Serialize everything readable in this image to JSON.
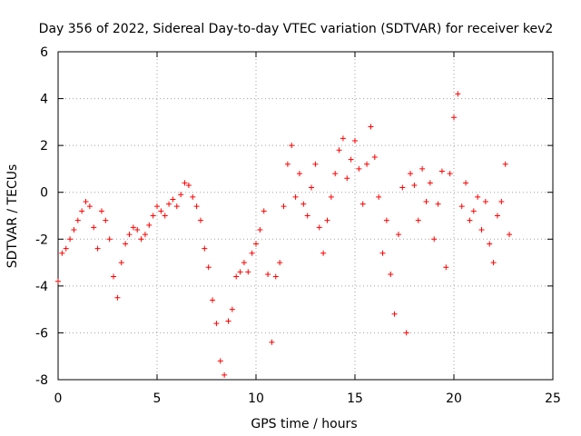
{
  "chart_data": {
    "type": "scatter",
    "title": "Day 356 of 2022, Sidereal Day-to-day VTEC variation (SDTVAR) for receiver kev2",
    "xlabel": "GPS time / hours",
    "ylabel": "SDTVAR / TECUs",
    "xlim": [
      0,
      25
    ],
    "ylim": [
      -8,
      6
    ],
    "xticks": [
      0,
      5,
      10,
      15,
      20,
      25
    ],
    "yticks": [
      -8,
      -6,
      -4,
      -2,
      0,
      2,
      4,
      6
    ],
    "grid": true,
    "marker": "plus",
    "color": "#ff0000",
    "series": [
      {
        "name": "SDTVAR",
        "x": [
          0.0,
          0.2,
          0.4,
          0.6,
          0.8,
          1.0,
          1.2,
          1.4,
          1.6,
          1.8,
          2.0,
          2.2,
          2.4,
          2.6,
          2.8,
          3.0,
          3.2,
          3.4,
          3.6,
          3.8,
          4.0,
          4.2,
          4.4,
          4.6,
          4.8,
          5.0,
          5.2,
          5.4,
          5.6,
          5.8,
          6.0,
          6.2,
          6.4,
          6.6,
          6.8,
          7.0,
          7.2,
          7.4,
          7.6,
          7.8,
          8.0,
          8.2,
          8.4,
          8.6,
          8.8,
          9.0,
          9.2,
          9.4,
          9.6,
          9.8,
          10.0,
          10.2,
          10.4,
          10.6,
          10.8,
          11.0,
          11.2,
          11.4,
          11.6,
          11.8,
          12.0,
          12.2,
          12.4,
          12.6,
          12.8,
          13.0,
          13.2,
          13.4,
          13.6,
          13.8,
          14.0,
          14.2,
          14.4,
          14.6,
          14.8,
          15.0,
          15.2,
          15.4,
          15.6,
          15.8,
          16.0,
          16.2,
          16.4,
          16.6,
          16.8,
          17.0,
          17.2,
          17.4,
          17.6,
          17.8,
          18.0,
          18.2,
          18.4,
          18.6,
          18.8,
          19.0,
          19.2,
          19.4,
          19.6,
          19.8,
          20.0,
          20.2,
          20.4,
          20.6,
          20.8,
          21.0,
          21.2,
          21.4,
          21.6,
          21.8,
          22.0,
          22.2,
          22.4,
          22.6,
          22.8
        ],
        "y": [
          -3.8,
          -2.6,
          -2.4,
          -2.0,
          -1.6,
          -1.2,
          -0.8,
          -0.4,
          -0.6,
          -1.5,
          -2.4,
          -0.8,
          -1.2,
          -2.0,
          -3.6,
          -4.5,
          -3.0,
          -2.2,
          -1.8,
          -1.5,
          -1.6,
          -2.0,
          -1.8,
          -1.4,
          -1.0,
          -0.6,
          -0.8,
          -1.0,
          -0.5,
          -0.3,
          -0.6,
          -0.1,
          0.4,
          0.3,
          -0.2,
          -0.6,
          -1.2,
          -2.4,
          -3.2,
          -4.6,
          -5.6,
          -7.2,
          -7.8,
          -5.5,
          -5.0,
          -3.6,
          -3.4,
          -3.0,
          -3.4,
          -2.6,
          -2.2,
          -1.6,
          -0.8,
          -3.5,
          -6.4,
          -3.6,
          -3.0,
          -0.6,
          1.2,
          2.0,
          -0.2,
          0.8,
          -0.5,
          -1.0,
          0.2,
          1.2,
          -1.5,
          -2.6,
          -1.2,
          -0.2,
          0.8,
          1.8,
          2.3,
          0.6,
          1.4,
          2.2,
          1.0,
          -0.5,
          1.2,
          2.8,
          1.5,
          -0.2,
          -2.6,
          -1.2,
          -3.5,
          -5.2,
          -1.8,
          0.2,
          -6.0,
          0.8,
          0.3,
          -1.2,
          1.0,
          -0.4,
          0.4,
          -2.0,
          -0.5,
          0.9,
          -3.2,
          0.8,
          3.2,
          4.2,
          -0.6,
          0.4,
          -1.2,
          -0.8,
          -0.2,
          -1.6,
          -0.4,
          -2.2,
          -3.0,
          -1.0,
          -0.4,
          1.2,
          -1.8
        ]
      }
    ]
  }
}
